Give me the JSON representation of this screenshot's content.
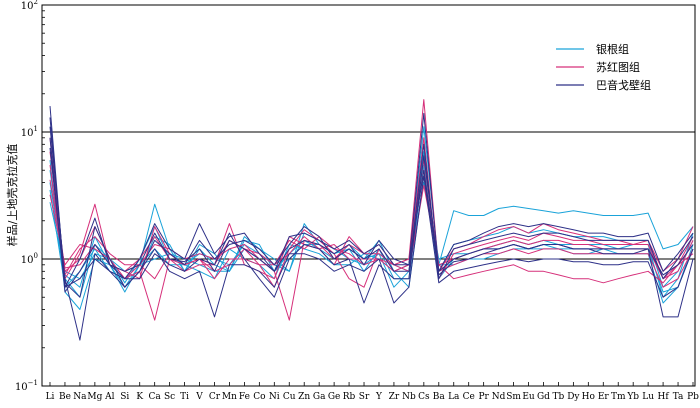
{
  "chart_data": {
    "type": "line",
    "title": "",
    "xlabel": "",
    "ylabel": "样品/上地壳克拉克值",
    "y_scale": "log",
    "ylim": [
      0.1,
      100
    ],
    "y_ticks": [
      {
        "value": 0.1,
        "base": "10",
        "exp": "−1"
      },
      {
        "value": 1,
        "base": "10",
        "exp": "0"
      },
      {
        "value": 10,
        "base": "10",
        "exp": "1"
      },
      {
        "value": 100,
        "base": "10",
        "exp": "2"
      }
    ],
    "gridlines_at": [
      1,
      10
    ],
    "legend_position": "top-right",
    "categories": [
      "Li",
      "Be",
      "Na",
      "Mg",
      "Al",
      "Si",
      "K",
      "Ca",
      "Sc",
      "Ti",
      "V",
      "Cr",
      "Mn",
      "Fe",
      "Co",
      "Ni",
      "Cu",
      "Zn",
      "Ga",
      "Ge",
      "Rb",
      "Sr",
      "Y",
      "Zr",
      "Nb",
      "Cs",
      "Ba",
      "La",
      "Ce",
      "Pr",
      "Nd",
      "Sm",
      "Eu",
      "Gd",
      "Tb",
      "Dy",
      "Ho",
      "Er",
      "Tm",
      "Yb",
      "Lu",
      "Hf",
      "Ta",
      "Pb"
    ],
    "groups": [
      {
        "name": "银根组",
        "color": "#1aa3d9",
        "series": [
          {
            "values": [
              5.0,
              0.75,
              0.6,
              1.5,
              0.9,
              0.6,
              0.9,
              2.7,
              1.2,
              0.8,
              1.3,
              1.1,
              0.8,
              1.5,
              1.2,
              1.0,
              0.8,
              1.9,
              1.3,
              1.1,
              1.3,
              1.0,
              1.4,
              0.8,
              0.9,
              11.0,
              0.9,
              2.4,
              2.2,
              2.2,
              2.5,
              2.6,
              2.5,
              2.4,
              2.3,
              2.4,
              2.3,
              2.2,
              2.2,
              2.2,
              2.3,
              1.2,
              1.3,
              1.8
            ]
          },
          {
            "values": [
              4.0,
              0.7,
              0.5,
              1.3,
              1.0,
              0.65,
              1.0,
              1.8,
              1.0,
              0.9,
              1.1,
              1.0,
              0.9,
              1.3,
              1.1,
              0.9,
              0.8,
              1.6,
              1.4,
              1.2,
              1.0,
              0.9,
              1.1,
              0.6,
              0.8,
              7.0,
              0.8,
              1.3,
              1.4,
              1.5,
              1.6,
              1.8,
              1.6,
              1.7,
              1.6,
              1.5,
              1.5,
              1.5,
              1.4,
              1.4,
              1.4,
              0.6,
              0.8,
              1.4
            ]
          },
          {
            "values": [
              3.5,
              0.6,
              0.8,
              1.2,
              0.8,
              0.7,
              0.8,
              1.5,
              1.3,
              0.8,
              1.2,
              0.9,
              0.8,
              1.4,
              1.3,
              0.8,
              1.1,
              1.4,
              1.2,
              1.0,
              1.2,
              0.8,
              1.2,
              0.7,
              0.7,
              5.5,
              0.7,
              1.0,
              1.1,
              1.2,
              1.3,
              1.4,
              1.3,
              1.4,
              1.3,
              1.3,
              1.3,
              1.3,
              1.2,
              1.3,
              1.3,
              0.5,
              0.7,
              1.6
            ]
          },
          {
            "values": [
              6.0,
              0.55,
              0.4,
              1.0,
              0.9,
              0.55,
              0.9,
              1.2,
              0.9,
              0.9,
              0.8,
              0.7,
              1.2,
              1.0,
              0.9,
              0.7,
              1.3,
              1.2,
              1.1,
              0.9,
              0.9,
              1.1,
              1.0,
              0.8,
              0.6,
              4.5,
              0.9,
              0.9,
              1.0,
              1.0,
              1.1,
              1.2,
              1.2,
              1.2,
              1.2,
              1.1,
              1.1,
              1.2,
              1.1,
              1.1,
              1.1,
              0.45,
              0.6,
              1.2
            ]
          },
          {
            "values": [
              2.8,
              0.8,
              0.7,
              1.1,
              1.0,
              0.8,
              0.9,
              1.0,
              1.1,
              1.0,
              0.9,
              0.8,
              0.8,
              1.2,
              1.0,
              0.8,
              1.0,
              1.3,
              1.3,
              1.1,
              1.2,
              1.0,
              1.1,
              0.9,
              0.8,
              4.0,
              1.0,
              1.1,
              1.1,
              1.2,
              1.2,
              1.3,
              1.2,
              1.3,
              1.2,
              1.2,
              1.2,
              1.2,
              1.2,
              1.2,
              1.2,
              0.55,
              0.6,
              1.3
            ]
          }
        ]
      },
      {
        "name": "苏红图组",
        "color": "#d6307a",
        "series": [
          {
            "values": [
              9.0,
              0.7,
              1.1,
              2.7,
              0.9,
              0.8,
              0.7,
              1.8,
              1.1,
              0.9,
              1.0,
              0.9,
              1.9,
              0.9,
              0.8,
              0.7,
              1.5,
              1.3,
              1.2,
              0.9,
              1.5,
              1.1,
              1.3,
              0.9,
              1.0,
              18.0,
              0.8,
              1.2,
              1.3,
              1.5,
              1.7,
              1.8,
              1.6,
              1.9,
              1.7,
              1.6,
              1.5,
              1.4,
              1.4,
              1.3,
              1.4,
              0.8,
              1.0,
              1.8
            ]
          },
          {
            "values": [
              7.0,
              0.8,
              1.0,
              1.8,
              1.0,
              0.7,
              0.8,
              0.33,
              1.0,
              0.8,
              0.9,
              0.9,
              1.4,
              1.2,
              0.9,
              0.6,
              1.2,
              1.7,
              1.4,
              1.1,
              0.7,
              0.6,
              1.2,
              0.8,
              0.9,
              9.0,
              0.7,
              1.1,
              1.2,
              1.3,
              1.4,
              1.5,
              1.4,
              1.6,
              1.5,
              1.4,
              1.4,
              1.3,
              1.3,
              1.3,
              1.3,
              0.7,
              0.9,
              1.5
            ]
          },
          {
            "values": [
              5.5,
              0.75,
              1.2,
              1.5,
              1.1,
              0.9,
              0.9,
              1.3,
              1.2,
              1.0,
              1.1,
              1.0,
              1.2,
              1.3,
              1.0,
              0.8,
              0.33,
              1.4,
              1.3,
              1.0,
              1.3,
              1.1,
              1.1,
              0.9,
              1.0,
              6.0,
              0.9,
              1.0,
              1.1,
              1.2,
              1.3,
              1.4,
              1.3,
              1.4,
              1.4,
              1.3,
              1.3,
              1.2,
              1.2,
              1.2,
              1.2,
              0.7,
              0.8,
              1.4
            ]
          },
          {
            "values": [
              4.2,
              0.85,
              0.9,
              1.3,
              0.9,
              0.8,
              1.0,
              1.5,
              1.0,
              0.9,
              1.0,
              0.8,
              0.9,
              1.2,
              1.1,
              0.9,
              1.4,
              1.2,
              1.5,
              1.2,
              1.1,
              0.9,
              1.0,
              0.8,
              0.9,
              5.0,
              0.8,
              0.9,
              1.0,
              1.1,
              1.1,
              1.2,
              1.1,
              1.2,
              1.2,
              1.1,
              1.1,
              1.1,
              1.1,
              1.1,
              1.1,
              0.6,
              0.7,
              1.2
            ]
          },
          {
            "values": [
              3.2,
              0.9,
              1.3,
              1.2,
              1.0,
              0.7,
              0.9,
              0.7,
              1.1,
              0.9,
              1.0,
              0.7,
              1.0,
              1.0,
              0.9,
              0.9,
              1.1,
              1.5,
              1.2,
              1.3,
              1.0,
              1.0,
              1.0,
              0.9,
              0.8,
              3.8,
              0.9,
              0.7,
              0.75,
              0.8,
              0.85,
              0.9,
              0.8,
              0.8,
              0.75,
              0.7,
              0.7,
              0.65,
              0.7,
              0.75,
              0.8,
              0.65,
              0.9,
              1.1
            ]
          }
        ]
      },
      {
        "name": "巴音戈壁组",
        "color": "#2e3188",
        "series": [
          {
            "values": [
              16.0,
              0.6,
              1.0,
              2.1,
              0.9,
              0.7,
              1.0,
              1.9,
              1.2,
              1.0,
              1.9,
              1.1,
              1.5,
              1.6,
              1.1,
              0.8,
              1.5,
              1.6,
              1.4,
              1.2,
              1.4,
              1.1,
              1.3,
              0.9,
              0.9,
              14.0,
              0.8,
              1.3,
              1.4,
              1.6,
              1.8,
              1.9,
              1.8,
              1.9,
              1.8,
              1.7,
              1.6,
              1.6,
              1.5,
              1.5,
              1.6,
              0.8,
              1.1,
              1.6
            ]
          },
          {
            "values": [
              13.0,
              0.65,
              0.5,
              1.8,
              1.0,
              0.6,
              0.8,
              1.4,
              1.1,
              0.9,
              1.4,
              1.0,
              1.3,
              1.4,
              1.2,
              0.9,
              1.3,
              1.8,
              1.5,
              1.0,
              1.2,
              1.0,
              1.2,
              0.8,
              0.8,
              8.0,
              0.7,
              1.2,
              1.3,
              1.4,
              1.5,
              1.6,
              1.5,
              1.6,
              1.6,
              1.5,
              1.4,
              1.4,
              1.4,
              1.4,
              1.4,
              0.7,
              1.0,
              1.5
            ]
          },
          {
            "values": [
              11.0,
              0.7,
              0.23,
              1.1,
              0.8,
              0.7,
              0.7,
              1.1,
              0.9,
              0.8,
              1.0,
              0.9,
              1.6,
              1.0,
              0.7,
              0.5,
              1.0,
              1.3,
              1.2,
              0.9,
              1.0,
              0.45,
              0.9,
              0.7,
              0.7,
              6.5,
              0.8,
              1.0,
              1.1,
              1.2,
              1.2,
              1.3,
              1.2,
              1.3,
              1.3,
              1.2,
              1.2,
              1.1,
              1.1,
              1.1,
              1.2,
              0.35,
              0.35,
              1.0
            ]
          },
          {
            "values": [
              9.0,
              0.55,
              0.8,
              1.3,
              0.9,
              0.8,
              0.9,
              1.6,
              1.0,
              0.95,
              1.2,
              0.8,
              1.4,
              1.2,
              1.0,
              0.8,
              1.2,
              1.4,
              1.3,
              1.1,
              1.3,
              0.9,
              1.4,
              1.0,
              0.9,
              5.0,
              0.75,
              0.95,
              1.0,
              1.1,
              1.2,
              1.3,
              1.2,
              1.3,
              1.3,
              1.2,
              1.2,
              1.2,
              1.2,
              1.2,
              1.2,
              0.75,
              0.9,
              1.3
            ]
          },
          {
            "values": [
              7.5,
              0.6,
              0.7,
              1.0,
              0.8,
              0.6,
              0.8,
              1.2,
              0.8,
              0.7,
              0.8,
              0.35,
              0.9,
              0.9,
              0.8,
              0.6,
              1.1,
              1.1,
              1.0,
              0.8,
              0.9,
              0.8,
              1.0,
              0.45,
              0.6,
              4.5,
              0.65,
              0.8,
              0.85,
              0.9,
              0.95,
              1.0,
              0.95,
              1.0,
              1.0,
              0.95,
              0.95,
              0.9,
              0.9,
              0.95,
              0.95,
              0.5,
              0.6,
              1.2
            ]
          }
        ]
      }
    ]
  }
}
